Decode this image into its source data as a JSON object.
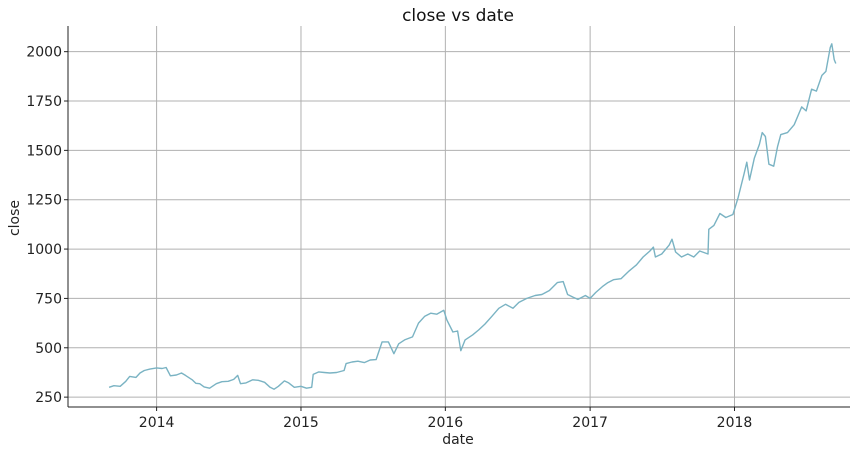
{
  "chart_data": {
    "type": "line",
    "title": "close vs date",
    "xlabel": "date",
    "ylabel": "close",
    "x_ticks": [
      "2014",
      "2015",
      "2016",
      "2017",
      "2018"
    ],
    "y_ticks": [
      250,
      500,
      750,
      1000,
      1250,
      1500,
      1750,
      2000
    ],
    "xlim": [
      "2013-05-22",
      "2018-10-20"
    ],
    "ylim": [
      200,
      2130
    ],
    "grid": true,
    "color": "#7ab3c3",
    "series": [
      {
        "points": [
          [
            "2013-09-03",
            300
          ],
          [
            "2013-09-15",
            308
          ],
          [
            "2013-10-01",
            305
          ],
          [
            "2013-10-15",
            330
          ],
          [
            "2013-10-25",
            355
          ],
          [
            "2013-11-10",
            350
          ],
          [
            "2013-11-20",
            372
          ],
          [
            "2013-12-01",
            385
          ],
          [
            "2013-12-15",
            392
          ],
          [
            "2014-01-01",
            398
          ],
          [
            "2014-01-15",
            395
          ],
          [
            "2014-01-25",
            400
          ],
          [
            "2014-02-05",
            358
          ],
          [
            "2014-02-20",
            362
          ],
          [
            "2014-03-05",
            372
          ],
          [
            "2014-03-15",
            360
          ],
          [
            "2014-04-01",
            338
          ],
          [
            "2014-04-10",
            320
          ],
          [
            "2014-04-20",
            318
          ],
          [
            "2014-05-01",
            302
          ],
          [
            "2014-05-15",
            295
          ],
          [
            "2014-06-01",
            318
          ],
          [
            "2014-06-15",
            328
          ],
          [
            "2014-07-01",
            330
          ],
          [
            "2014-07-15",
            340
          ],
          [
            "2014-07-25",
            360
          ],
          [
            "2014-08-01",
            318
          ],
          [
            "2014-08-15",
            322
          ],
          [
            "2014-09-01",
            338
          ],
          [
            "2014-09-15",
            335
          ],
          [
            "2014-10-01",
            325
          ],
          [
            "2014-10-15",
            300
          ],
          [
            "2014-10-25",
            290
          ],
          [
            "2014-11-05",
            305
          ],
          [
            "2014-11-20",
            332
          ],
          [
            "2014-12-01",
            322
          ],
          [
            "2014-12-15",
            300
          ],
          [
            "2015-01-01",
            305
          ],
          [
            "2015-01-15",
            295
          ],
          [
            "2015-01-28",
            300
          ],
          [
            "2015-02-01",
            365
          ],
          [
            "2015-02-15",
            378
          ],
          [
            "2015-03-01",
            375
          ],
          [
            "2015-03-15",
            372
          ],
          [
            "2015-04-01",
            375
          ],
          [
            "2015-04-20",
            385
          ],
          [
            "2015-04-25",
            420
          ],
          [
            "2015-05-10",
            428
          ],
          [
            "2015-05-25",
            432
          ],
          [
            "2015-06-10",
            425
          ],
          [
            "2015-06-25",
            438
          ],
          [
            "2015-07-10",
            440
          ],
          [
            "2015-07-25",
            530
          ],
          [
            "2015-08-10",
            530
          ],
          [
            "2015-08-24",
            470
          ],
          [
            "2015-09-05",
            520
          ],
          [
            "2015-09-20",
            540
          ],
          [
            "2015-10-10",
            555
          ],
          [
            "2015-10-25",
            625
          ],
          [
            "2015-11-10",
            660
          ],
          [
            "2015-11-25",
            675
          ],
          [
            "2015-12-10",
            670
          ],
          [
            "2015-12-28",
            690
          ],
          [
            "2016-01-05",
            640
          ],
          [
            "2016-01-20",
            580
          ],
          [
            "2016-02-01",
            585
          ],
          [
            "2016-02-09",
            485
          ],
          [
            "2016-02-20",
            540
          ],
          [
            "2016-03-10",
            565
          ],
          [
            "2016-03-25",
            590
          ],
          [
            "2016-04-10",
            620
          ],
          [
            "2016-04-28",
            660
          ],
          [
            "2016-05-15",
            700
          ],
          [
            "2016-06-01",
            720
          ],
          [
            "2016-06-20",
            700
          ],
          [
            "2016-07-05",
            730
          ],
          [
            "2016-07-25",
            750
          ],
          [
            "2016-08-15",
            765
          ],
          [
            "2016-09-01",
            770
          ],
          [
            "2016-09-20",
            790
          ],
          [
            "2016-10-10",
            830
          ],
          [
            "2016-10-25",
            835
          ],
          [
            "2016-11-05",
            770
          ],
          [
            "2016-11-20",
            755
          ],
          [
            "2016-12-01",
            745
          ],
          [
            "2016-12-20",
            765
          ],
          [
            "2017-01-01",
            750
          ],
          [
            "2017-01-15",
            780
          ],
          [
            "2017-02-01",
            810
          ],
          [
            "2017-02-15",
            830
          ],
          [
            "2017-03-01",
            845
          ],
          [
            "2017-03-20",
            850
          ],
          [
            "2017-04-10",
            890
          ],
          [
            "2017-04-28",
            920
          ],
          [
            "2017-05-15",
            960
          ],
          [
            "2017-06-01",
            990
          ],
          [
            "2017-06-10",
            1010
          ],
          [
            "2017-06-15",
            960
          ],
          [
            "2017-07-01",
            975
          ],
          [
            "2017-07-20",
            1020
          ],
          [
            "2017-07-27",
            1050
          ],
          [
            "2017-08-05",
            985
          ],
          [
            "2017-08-20",
            960
          ],
          [
            "2017-09-05",
            975
          ],
          [
            "2017-09-20",
            960
          ],
          [
            "2017-10-05",
            990
          ],
          [
            "2017-10-26",
            975
          ],
          [
            "2017-10-28",
            1100
          ],
          [
            "2017-11-10",
            1120
          ],
          [
            "2017-11-25",
            1180
          ],
          [
            "2017-12-10",
            1160
          ],
          [
            "2017-12-28",
            1175
          ],
          [
            "2018-01-10",
            1260
          ],
          [
            "2018-01-25",
            1380
          ],
          [
            "2018-02-01",
            1440
          ],
          [
            "2018-02-08",
            1350
          ],
          [
            "2018-02-20",
            1460
          ],
          [
            "2018-03-05",
            1530
          ],
          [
            "2018-03-12",
            1590
          ],
          [
            "2018-03-20",
            1570
          ],
          [
            "2018-03-29",
            1430
          ],
          [
            "2018-04-10",
            1420
          ],
          [
            "2018-04-20",
            1520
          ],
          [
            "2018-04-28",
            1580
          ],
          [
            "2018-05-15",
            1590
          ],
          [
            "2018-06-01",
            1630
          ],
          [
            "2018-06-20",
            1720
          ],
          [
            "2018-07-01",
            1700
          ],
          [
            "2018-07-15",
            1810
          ],
          [
            "2018-07-27",
            1800
          ],
          [
            "2018-08-10",
            1880
          ],
          [
            "2018-08-20",
            1900
          ],
          [
            "2018-08-31",
            2020
          ],
          [
            "2018-09-04",
            2040
          ],
          [
            "2018-09-10",
            1960
          ],
          [
            "2018-09-14",
            1940
          ]
        ]
      }
    ]
  }
}
